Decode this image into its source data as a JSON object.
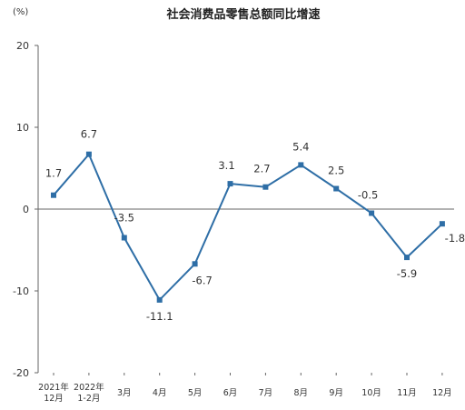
{
  "chart_data": {
    "type": "line",
    "title": "社会消费品零售总额同比增速",
    "yunit": "(%)",
    "ylim": [
      -20,
      20
    ],
    "yticks": [
      "20",
      "10",
      "0",
      "-10",
      "-20"
    ],
    "grid": false,
    "categories": [
      [
        "2021年",
        "12月"
      ],
      [
        "2022年",
        "1-2月"
      ],
      [
        "3月"
      ],
      [
        "4月"
      ],
      [
        "5月"
      ],
      [
        "6月"
      ],
      [
        "7月"
      ],
      [
        "8月"
      ],
      [
        "9月"
      ],
      [
        "10月"
      ],
      [
        "11月"
      ],
      [
        "12月"
      ]
    ],
    "values": [
      1.7,
      6.7,
      -3.5,
      -11.1,
      -6.7,
      3.1,
      2.7,
      5.4,
      2.5,
      -0.5,
      -5.9,
      -1.8
    ],
    "data_labels": [
      "1.7",
      "6.7",
      "-3.5",
      "-11.1",
      "-6.7",
      "3.1",
      "2.7",
      "5.4",
      "2.5",
      "-0.5",
      "-5.9",
      "-1.8"
    ],
    "line_color": "#2e6ea6",
    "marker_color": "#2e6ea6",
    "axis_color": "#666666"
  }
}
